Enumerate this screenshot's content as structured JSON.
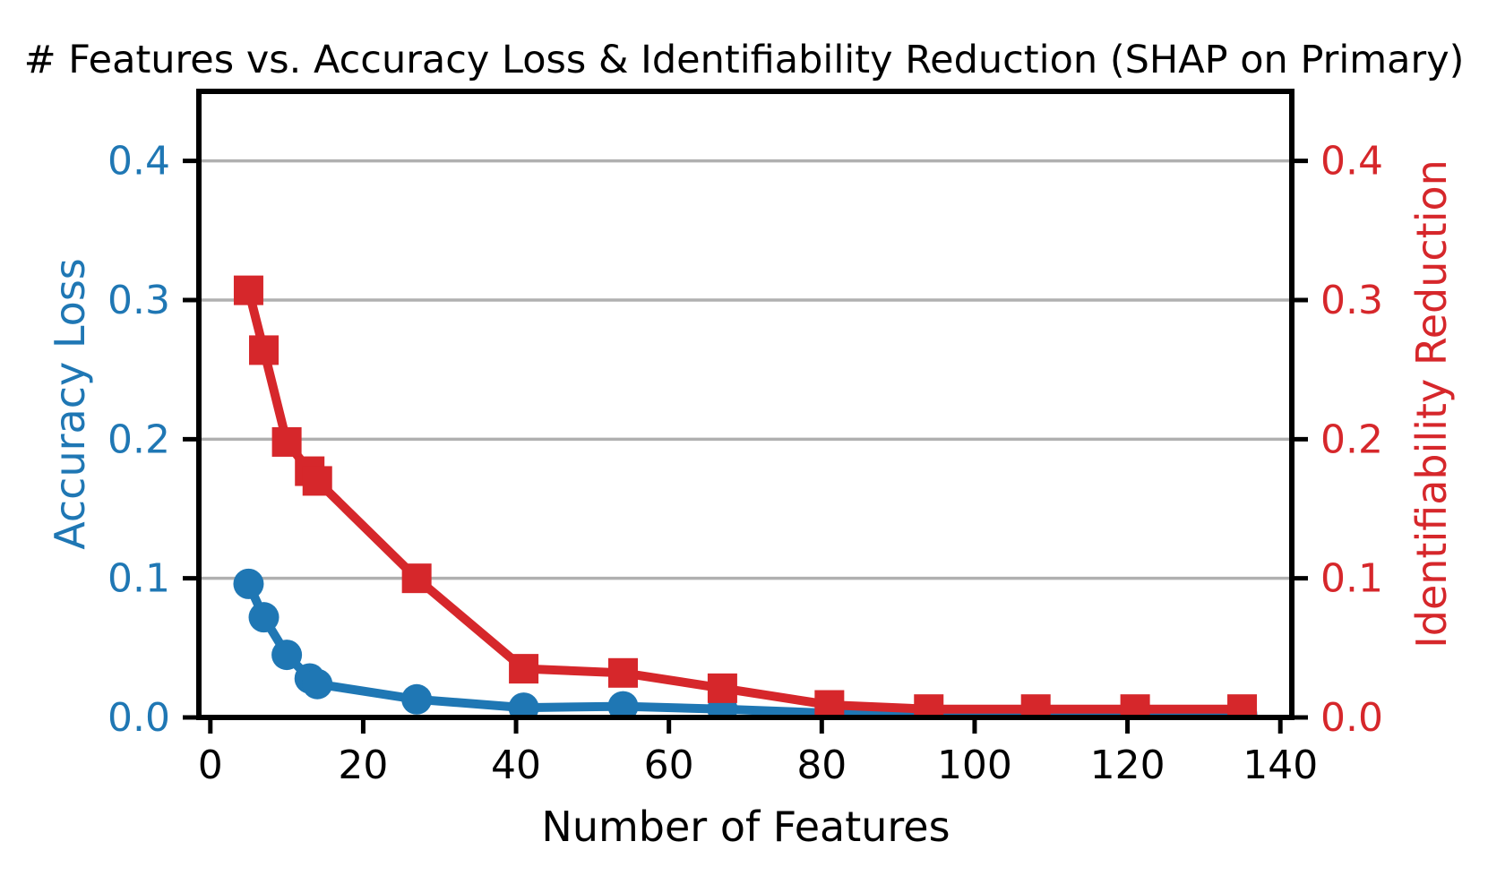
{
  "chart_data": {
    "type": "line",
    "title": "# Features vs. Accuracy Loss & Identifiability Reduction (SHAP on Primary)",
    "xlabel": "Number of Features",
    "ylabel_left": "Accuracy Loss",
    "ylabel_right": "Identifiability Reduction",
    "x": [
      5,
      7,
      10,
      13,
      14,
      27,
      41,
      54,
      67,
      81,
      94,
      108,
      121,
      135
    ],
    "series": [
      {
        "name": "Accuracy Loss",
        "axis": "left",
        "marker": "circle",
        "color": "#1f77b4",
        "values": [
          0.096,
          0.072,
          0.045,
          0.028,
          0.024,
          0.013,
          0.007,
          0.008,
          0.006,
          0.003,
          0.002,
          0.002,
          0.002,
          0.002
        ]
      },
      {
        "name": "Identifiability Reduction",
        "axis": "right",
        "marker": "square",
        "color": "#d6272b",
        "values": [
          0.307,
          0.264,
          0.198,
          0.177,
          0.17,
          0.1,
          0.035,
          0.032,
          0.021,
          0.009,
          0.006,
          0.006,
          0.006,
          0.006
        ]
      }
    ],
    "x_ticks": [
      0,
      20,
      40,
      60,
      80,
      100,
      120,
      140
    ],
    "y_ticks": [
      0.0,
      0.1,
      0.2,
      0.3,
      0.4
    ],
    "y_tick_labels": [
      "0.0",
      "0.1",
      "0.2",
      "0.3",
      "0.4"
    ],
    "xlim": [
      -1.5,
      141.5
    ],
    "ylim": [
      0.0,
      0.45
    ],
    "grid": "horizontal",
    "legend": "none",
    "colors": {
      "left_axis": "#1f77b4",
      "right_axis": "#d6272b",
      "grid": "#b0b0b0",
      "spine": "#000000",
      "title_text": "#000000"
    }
  }
}
